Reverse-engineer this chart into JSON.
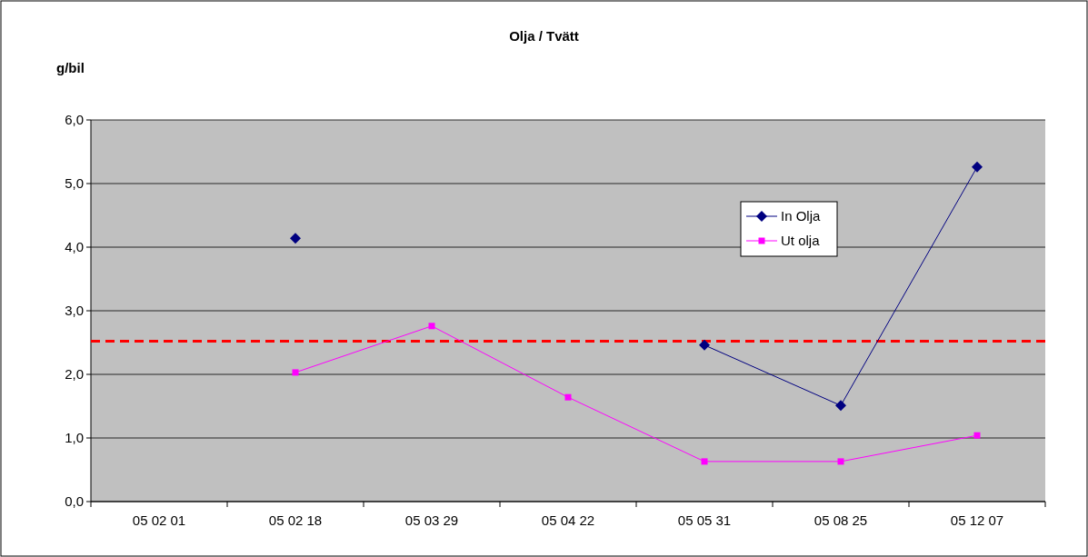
{
  "chart_data": {
    "type": "line",
    "title": "Olja / Tvätt",
    "ylabel": "g/bil",
    "categories": [
      "05 02 01",
      "05 02 18",
      "05 03 29",
      "05 04 22",
      "05 05 31",
      "05 08 25",
      "05 12 07"
    ],
    "series": [
      {
        "name": "In Olja",
        "color": "#000080",
        "marker": "diamond",
        "values": [
          null,
          4.14,
          null,
          null,
          2.46,
          1.51,
          5.26
        ]
      },
      {
        "name": "Ut olja",
        "color": "#ff00ff",
        "marker": "square",
        "values": [
          null,
          2.03,
          2.76,
          1.64,
          0.63,
          0.63,
          1.04
        ]
      }
    ],
    "ylim": [
      0,
      6
    ],
    "yticks": [
      {
        "value": 0,
        "label": "0,0"
      },
      {
        "value": 1,
        "label": "1,0"
      },
      {
        "value": 2,
        "label": "2,0"
      },
      {
        "value": 3,
        "label": "3,0"
      },
      {
        "value": 4,
        "label": "4,0"
      },
      {
        "value": 5,
        "label": "5,0"
      },
      {
        "value": 6,
        "label": "6,0"
      }
    ],
    "ref_lines": [
      {
        "axis": "y",
        "value": 2.52,
        "color": "#ff0000",
        "line_style": "dashed"
      }
    ],
    "grid": "y",
    "legend": "top right"
  }
}
